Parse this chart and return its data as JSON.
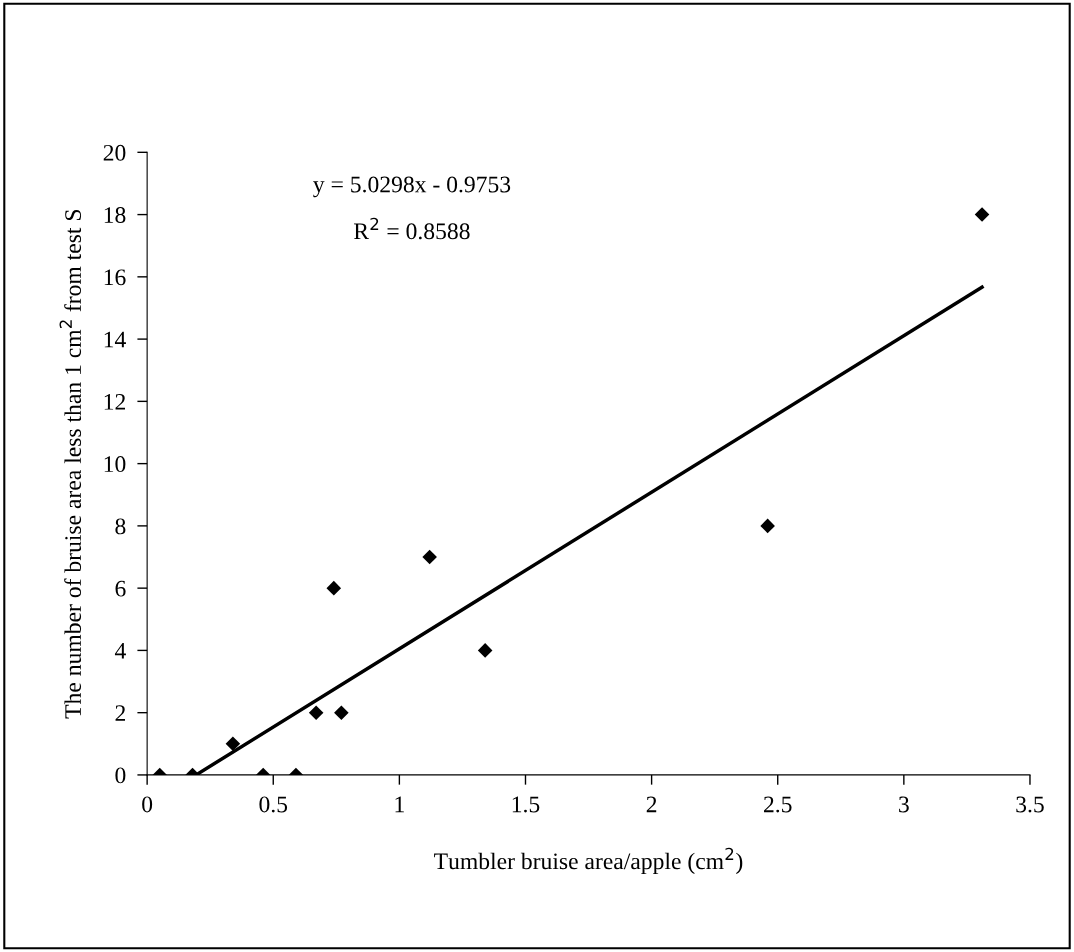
{
  "chart_data": {
    "type": "scatter",
    "xlabel": "Tumbler bruise area/apple (cm$^{2}$)",
    "ylabel": "The number of bruise area less than 1 cm$^{2}$ from test S",
    "annotations": [
      "y = 5.0298x - 0.9753",
      "R$^{2}$ = 0.8588"
    ],
    "series": [
      {
        "color": "#000000",
        "marker": "diamond",
        "x": [
          0.05,
          0.18,
          0.34,
          0.46,
          0.59,
          0.67,
          0.74,
          0.77,
          1.12,
          1.34,
          2.46,
          3.31
        ],
        "values": [
          0,
          0,
          1,
          0,
          0,
          2,
          6,
          2,
          7,
          4,
          8,
          18
        ]
      },
      {
        "type": "line",
        "color": "#000000",
        "marker": "none",
        "line_style": "solid",
        "x": [
          0.194,
          3.31
        ],
        "values": [
          0,
          15.67
        ]
      }
    ],
    "xlim": [
      0,
      3.5
    ],
    "xticks": [
      0,
      0.5,
      1,
      1.5,
      2,
      2.5,
      3,
      3.5
    ],
    "ylim": [
      0,
      20
    ],
    "yticks": [
      0,
      2,
      4,
      6,
      8,
      10,
      12,
      14,
      16,
      18,
      20
    ],
    "grid": false,
    "legend": false
  }
}
